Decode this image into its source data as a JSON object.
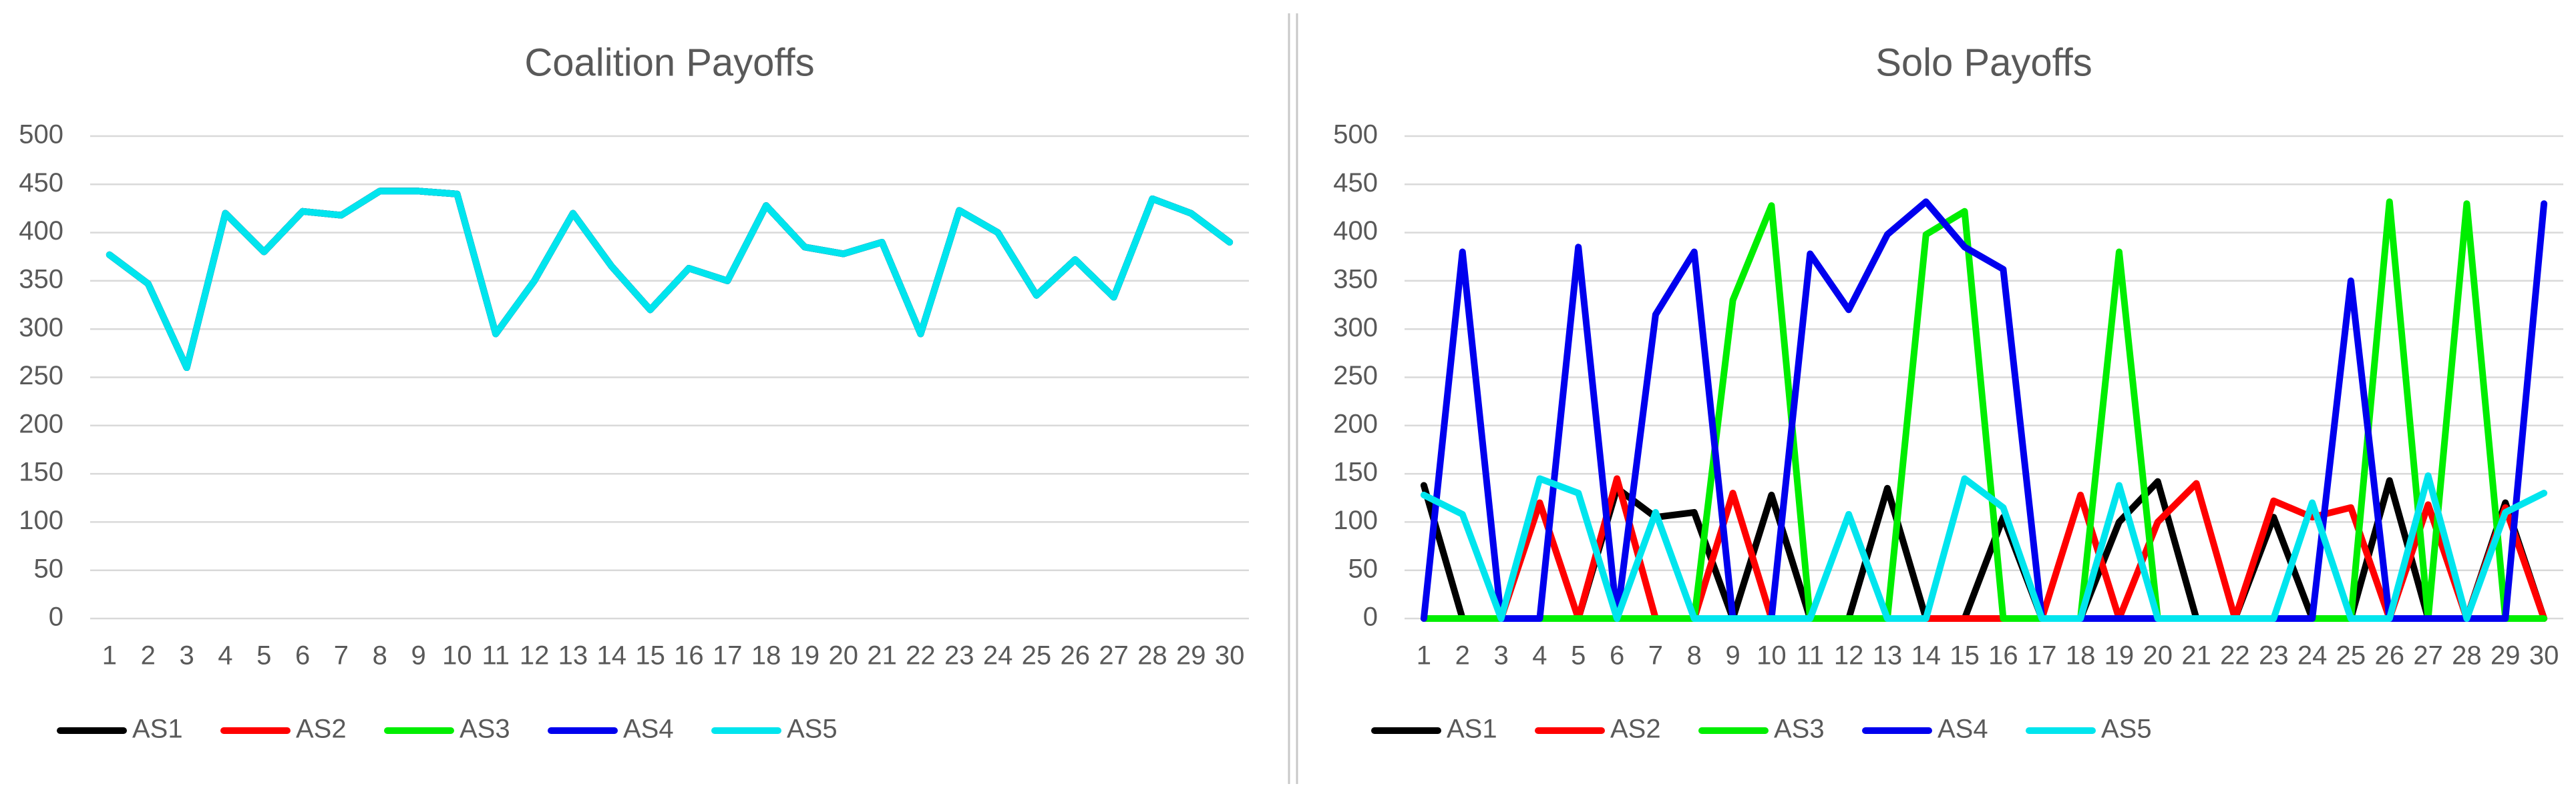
{
  "chart_data": [
    {
      "type": "line",
      "title": "Coalition Payoffs",
      "categories": [
        1,
        2,
        3,
        4,
        5,
        6,
        7,
        8,
        9,
        10,
        11,
        12,
        13,
        14,
        15,
        16,
        17,
        18,
        19,
        20,
        21,
        22,
        23,
        24,
        25,
        26,
        27,
        28,
        29,
        30
      ],
      "ylim": [
        0,
        500
      ],
      "yticks": [
        0,
        50,
        100,
        150,
        200,
        250,
        300,
        350,
        400,
        450,
        500
      ],
      "grid": true,
      "legend": "bottom",
      "series": [
        {
          "name": "AS1",
          "color": "#000000",
          "values": [
            377,
            347,
            260,
            420,
            380,
            422,
            418,
            443,
            443,
            440,
            295,
            350,
            420,
            365,
            320,
            363,
            350,
            428,
            385,
            378,
            390,
            295,
            423,
            400,
            335,
            372,
            333,
            435,
            420,
            390
          ]
        },
        {
          "name": "AS2",
          "color": "#ff0000",
          "values": [
            377,
            347,
            260,
            420,
            380,
            422,
            418,
            443,
            443,
            440,
            295,
            350,
            420,
            365,
            320,
            363,
            350,
            428,
            385,
            378,
            390,
            295,
            423,
            400,
            335,
            372,
            333,
            435,
            420,
            390
          ]
        },
        {
          "name": "AS3",
          "color": "#00ee00",
          "values": [
            377,
            347,
            260,
            420,
            380,
            422,
            418,
            443,
            443,
            440,
            295,
            350,
            420,
            365,
            320,
            363,
            350,
            428,
            385,
            378,
            390,
            295,
            423,
            400,
            335,
            372,
            333,
            435,
            420,
            390
          ]
        },
        {
          "name": "AS4",
          "color": "#0000ee",
          "values": [
            377,
            347,
            260,
            420,
            380,
            422,
            418,
            443,
            443,
            440,
            295,
            350,
            420,
            365,
            320,
            363,
            350,
            428,
            385,
            378,
            390,
            295,
            423,
            400,
            335,
            372,
            333,
            435,
            420,
            390
          ]
        },
        {
          "name": "AS5",
          "color": "#00e5ee",
          "values": [
            377,
            347,
            260,
            420,
            380,
            422,
            418,
            443,
            443,
            440,
            295,
            350,
            420,
            365,
            320,
            363,
            350,
            428,
            385,
            378,
            390,
            295,
            423,
            400,
            335,
            372,
            333,
            435,
            420,
            390
          ]
        }
      ]
    },
    {
      "type": "line",
      "title": "Solo Payoffs",
      "categories": [
        1,
        2,
        3,
        4,
        5,
        6,
        7,
        8,
        9,
        10,
        11,
        12,
        13,
        14,
        15,
        16,
        17,
        18,
        19,
        20,
        21,
        22,
        23,
        24,
        25,
        26,
        27,
        28,
        29,
        30
      ],
      "ylim": [
        0,
        500
      ],
      "yticks": [
        0,
        50,
        100,
        150,
        200,
        250,
        300,
        350,
        400,
        450,
        500
      ],
      "grid": true,
      "legend": "bottom",
      "series": [
        {
          "name": "AS1",
          "color": "#000000",
          "values": [
            138,
            0,
            0,
            0,
            0,
            135,
            105,
            110,
            0,
            128,
            0,
            0,
            135,
            0,
            0,
            105,
            0,
            0,
            100,
            142,
            0,
            0,
            105,
            0,
            0,
            143,
            0,
            0,
            120,
            0
          ]
        },
        {
          "name": "AS2",
          "color": "#ff0000",
          "values": [
            0,
            0,
            0,
            120,
            0,
            145,
            0,
            0,
            130,
            0,
            0,
            0,
            0,
            0,
            0,
            0,
            0,
            128,
            0,
            100,
            140,
            0,
            122,
            105,
            115,
            0,
            118,
            0,
            115,
            0
          ]
        },
        {
          "name": "AS3",
          "color": "#00ee00",
          "values": [
            0,
            0,
            0,
            0,
            0,
            0,
            0,
            0,
            330,
            428,
            0,
            0,
            0,
            398,
            422,
            0,
            0,
            0,
            380,
            0,
            0,
            0,
            0,
            0,
            0,
            432,
            0,
            430,
            0,
            0
          ]
        },
        {
          "name": "AS4",
          "color": "#0000ee",
          "values": [
            0,
            380,
            0,
            0,
            385,
            0,
            315,
            380,
            0,
            0,
            378,
            320,
            398,
            432,
            385,
            362,
            0,
            0,
            0,
            0,
            0,
            0,
            0,
            0,
            350,
            0,
            0,
            0,
            0,
            430
          ]
        },
        {
          "name": "AS5",
          "color": "#00e5ee",
          "values": [
            128,
            108,
            0,
            145,
            130,
            0,
            110,
            0,
            0,
            0,
            0,
            108,
            0,
            0,
            145,
            115,
            0,
            0,
            138,
            0,
            0,
            0,
            0,
            120,
            0,
            0,
            148,
            0,
            110,
            130
          ]
        }
      ]
    }
  ]
}
